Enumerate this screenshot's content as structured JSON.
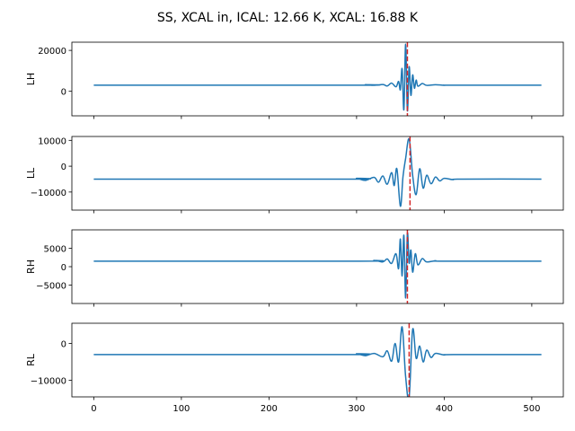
{
  "figure": {
    "title": "SS, XCAL in, ICAL: 12.66 K, XCAL: 16.88 K"
  },
  "colors": {
    "series": "#1f77b4",
    "marker": "#d62728",
    "axes": "#000000"
  },
  "chart_data": [
    {
      "type": "line",
      "ylabel": "LH",
      "xlim": [
        -25,
        536
      ],
      "ylim": [
        -12000,
        24000
      ],
      "yticks": [
        0,
        20000
      ],
      "ytick_labels": [
        "0",
        "20000"
      ],
      "xticks": [
        0,
        100,
        200,
        300,
        400,
        500
      ],
      "xtick_labels": [],
      "series": [
        {
          "baseline": 3000,
          "n_points": 512,
          "center": 355,
          "peak": 23000,
          "trough": -9500,
          "x": [
            300,
            310,
            320,
            330,
            335,
            340,
            345,
            348,
            350,
            352,
            354,
            356,
            358,
            360,
            362,
            364,
            366,
            368,
            370,
            375,
            380,
            390,
            400,
            410
          ],
          "y": [
            3000,
            3200,
            2900,
            3300,
            2600,
            4000,
            2200,
            4800,
            800,
            11000,
            -9000,
            23000,
            -9500,
            12000,
            -2000,
            8000,
            1500,
            5500,
            2500,
            3800,
            2900,
            3200,
            2950,
            3000
          ]
        }
      ],
      "vline": {
        "x": 358,
        "style": "dashed"
      }
    },
    {
      "type": "line",
      "ylabel": "LL",
      "xlim": [
        -25,
        536
      ],
      "ylim": [
        -17000,
        11500
      ],
      "yticks": [
        -10000,
        0,
        10000
      ],
      "ytick_labels": [
        "−10000",
        "0",
        "10000"
      ],
      "xticks": [
        0,
        100,
        200,
        300,
        400,
        500
      ],
      "xtick_labels": [],
      "series": [
        {
          "baseline": -5000,
          "n_points": 512,
          "center": 358,
          "peak": 10500,
          "trough": -15500,
          "x": [
            290,
            300,
            310,
            320,
            325,
            330,
            335,
            340,
            343,
            346,
            350,
            353,
            356,
            360,
            364,
            368,
            372,
            376,
            380,
            385,
            390,
            395,
            400,
            410,
            420
          ],
          "y": [
            -5000,
            -4700,
            -5500,
            -4300,
            -6200,
            -3800,
            -7000,
            -2500,
            -7500,
            -1000,
            -15500,
            -4000,
            3000,
            10500,
            -3500,
            -11000,
            -1000,
            -8500,
            -3500,
            -6800,
            -4200,
            -5700,
            -4700,
            -5200,
            -5000
          ]
        }
      ],
      "vline": {
        "x": 361,
        "style": "dashed"
      }
    },
    {
      "type": "line",
      "ylabel": "RH",
      "xlim": [
        -25,
        536
      ],
      "ylim": [
        -10000,
        10000
      ],
      "yticks": [
        -5000,
        0,
        5000
      ],
      "ytick_labels": [
        "−5000",
        "0",
        "5000"
      ],
      "xticks": [
        0,
        100,
        200,
        300,
        400,
        500
      ],
      "xtick_labels": [],
      "series": [
        {
          "baseline": 1500,
          "n_points": 512,
          "center": 356,
          "peak": 9000,
          "trough": -8500,
          "x": [
            300,
            320,
            330,
            335,
            340,
            345,
            348,
            350,
            352,
            354,
            356,
            358,
            360,
            362,
            364,
            367,
            370,
            375,
            380,
            390,
            400
          ],
          "y": [
            1500,
            1700,
            1300,
            2100,
            900,
            3500,
            -500,
            7500,
            -2500,
            8500,
            -8500,
            9000,
            1000,
            4500,
            -1500,
            3500,
            500,
            2200,
            1300,
            1600,
            1500
          ]
        }
      ],
      "vline": {
        "x": 358,
        "style": "dashed"
      }
    },
    {
      "type": "line",
      "ylabel": "RL",
      "xlim": [
        -25,
        536
      ],
      "ylim": [
        -14500,
        5500
      ],
      "yticks": [
        -10000,
        0
      ],
      "ytick_labels": [
        "−10000",
        "0"
      ],
      "xticks": [
        0,
        100,
        200,
        300,
        400,
        500
      ],
      "xtick_labels": [
        "0",
        "100",
        "200",
        "300",
        "400",
        "500"
      ],
      "series": [
        {
          "baseline": -3000,
          "n_points": 512,
          "center": 355,
          "peak": 4500,
          "trough": -14500,
          "x": [
            290,
            300,
            310,
            320,
            330,
            335,
            340,
            344,
            348,
            352,
            356,
            360,
            364,
            368,
            372,
            376,
            380,
            385,
            390,
            400,
            410
          ],
          "y": [
            -3000,
            -2800,
            -3300,
            -2700,
            -3600,
            -2000,
            -4800,
            0,
            -5000,
            4500,
            -9000,
            -14500,
            3800,
            -4000,
            -700,
            -5000,
            -1800,
            -3800,
            -2700,
            -3100,
            -3000
          ]
        }
      ],
      "vline": {
        "x": 360,
        "style": "dashed"
      }
    }
  ]
}
